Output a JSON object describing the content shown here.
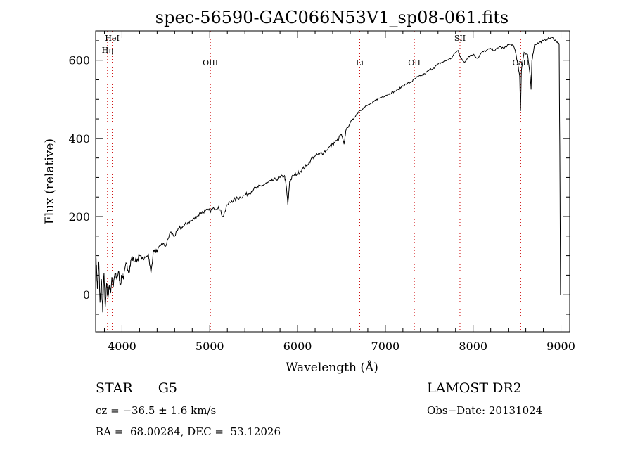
{
  "chart_data": {
    "type": "line",
    "title": "spec-56590-GAC066N53V1_sp08-061.fits",
    "xlabel": "Wavelength (Å)",
    "ylabel": "Flux (relative)",
    "xlim": [
      3700,
      9100
    ],
    "ylim": [
      -95,
      675
    ],
    "x_ticks": [
      4000,
      5000,
      6000,
      7000,
      8000,
      9000
    ],
    "y_ticks": [
      0,
      200,
      400,
      600
    ],
    "x_tick_labels": [
      "4000",
      "5000",
      "6000",
      "7000",
      "8000",
      "9000"
    ],
    "y_tick_labels": [
      "0",
      "200",
      "400",
      "600"
    ],
    "grid": false,
    "series": [
      {
        "color": "#000000",
        "points": [
          [
            3705,
            95
          ],
          [
            3720,
            15
          ],
          [
            3735,
            85
          ],
          [
            3750,
            -20
          ],
          [
            3765,
            40
          ],
          [
            3780,
            -45
          ],
          [
            3795,
            55
          ],
          [
            3810,
            -30
          ],
          [
            3825,
            30
          ],
          [
            3840,
            -10
          ],
          [
            3855,
            25
          ],
          [
            3870,
            5
          ],
          [
            3885,
            45
          ],
          [
            3900,
            20
          ],
          [
            3920,
            55
          ],
          [
            3940,
            40
          ],
          [
            3960,
            60
          ],
          [
            3980,
            25
          ],
          [
            4000,
            50
          ],
          [
            4020,
            45
          ],
          [
            4050,
            80
          ],
          [
            4080,
            60
          ],
          [
            4110,
            95
          ],
          [
            4150,
            85
          ],
          [
            4200,
            100
          ],
          [
            4250,
            90
          ],
          [
            4300,
            105
          ],
          [
            4330,
            55
          ],
          [
            4360,
            115
          ],
          [
            4400,
            110
          ],
          [
            4450,
            130
          ],
          [
            4500,
            125
          ],
          [
            4550,
            160
          ],
          [
            4600,
            150
          ],
          [
            4650,
            170
          ],
          [
            4700,
            175
          ],
          [
            4750,
            185
          ],
          [
            4800,
            190
          ],
          [
            4850,
            200
          ],
          [
            4900,
            210
          ],
          [
            4950,
            215
          ],
          [
            5000,
            215
          ],
          [
            5050,
            220
          ],
          [
            5100,
            225
          ],
          [
            5150,
            200
          ],
          [
            5200,
            230
          ],
          [
            5250,
            240
          ],
          [
            5300,
            245
          ],
          [
            5350,
            250
          ],
          [
            5400,
            255
          ],
          [
            5450,
            260
          ],
          [
            5500,
            270
          ],
          [
            5550,
            275
          ],
          [
            5600,
            280
          ],
          [
            5650,
            285
          ],
          [
            5700,
            290
          ],
          [
            5750,
            295
          ],
          [
            5800,
            300
          ],
          [
            5850,
            305
          ],
          [
            5870,
            280
          ],
          [
            5890,
            230
          ],
          [
            5910,
            290
          ],
          [
            5950,
            305
          ],
          [
            6000,
            310
          ],
          [
            6050,
            320
          ],
          [
            6100,
            330
          ],
          [
            6150,
            345
          ],
          [
            6200,
            355
          ],
          [
            6250,
            360
          ],
          [
            6300,
            365
          ],
          [
            6350,
            375
          ],
          [
            6400,
            385
          ],
          [
            6450,
            395
          ],
          [
            6500,
            410
          ],
          [
            6530,
            385
          ],
          [
            6550,
            420
          ],
          [
            6600,
            440
          ],
          [
            6650,
            455
          ],
          [
            6700,
            470
          ],
          [
            6750,
            478
          ],
          [
            6800,
            485
          ],
          [
            6850,
            490
          ],
          [
            6900,
            500
          ],
          [
            6950,
            505
          ],
          [
            7000,
            510
          ],
          [
            7050,
            515
          ],
          [
            7100,
            520
          ],
          [
            7150,
            525
          ],
          [
            7200,
            535
          ],
          [
            7250,
            540
          ],
          [
            7300,
            545
          ],
          [
            7350,
            555
          ],
          [
            7400,
            560
          ],
          [
            7450,
            565
          ],
          [
            7500,
            575
          ],
          [
            7550,
            580
          ],
          [
            7600,
            590
          ],
          [
            7650,
            595
          ],
          [
            7700,
            600
          ],
          [
            7750,
            605
          ],
          [
            7800,
            620
          ],
          [
            7830,
            625
          ],
          [
            7860,
            605
          ],
          [
            7900,
            595
          ],
          [
            7950,
            610
          ],
          [
            8000,
            615
          ],
          [
            8050,
            605
          ],
          [
            8100,
            620
          ],
          [
            8150,
            625
          ],
          [
            8200,
            630
          ],
          [
            8250,
            625
          ],
          [
            8300,
            635
          ],
          [
            8350,
            630
          ],
          [
            8400,
            640
          ],
          [
            8450,
            640
          ],
          [
            8480,
            625
          ],
          [
            8500,
            600
          ],
          [
            8530,
            560
          ],
          [
            8540,
            470
          ],
          [
            8550,
            575
          ],
          [
            8580,
            620
          ],
          [
            8620,
            615
          ],
          [
            8650,
            560
          ],
          [
            8660,
            525
          ],
          [
            8670,
            600
          ],
          [
            8700,
            640
          ],
          [
            8750,
            645
          ],
          [
            8800,
            650
          ],
          [
            8850,
            655
          ],
          [
            8900,
            658
          ],
          [
            8940,
            650
          ],
          [
            8960,
            645
          ],
          [
            8980,
            640
          ],
          [
            8990,
            250
          ],
          [
            8995,
            0
          ]
        ]
      }
    ],
    "lines": [
      {
        "name": "HeI",
        "x": 3889,
        "color": "#cc0000"
      },
      {
        "name": "Hη",
        "x": 3835,
        "color": "#cc0000"
      },
      {
        "name": "OIII",
        "x": 5007,
        "color": "#cc0000"
      },
      {
        "name": "Li",
        "x": 6708,
        "color": "#cc0000"
      },
      {
        "name": "OII",
        "x": 7330,
        "color": "#cc0000"
      },
      {
        "name": "SII",
        "x": 7850,
        "color": "#cc0000"
      },
      {
        "name": "CaII",
        "x": 8542,
        "color": "#cc0000"
      }
    ]
  },
  "info": {
    "class_label": "STAR",
    "subclass_label": "G5",
    "survey": "LAMOST DR2",
    "cz": "cz = −36.5 ± 1.6 km/s",
    "obs_date": "Obs−Date: 20131024",
    "radec": "RA =  68.00284, DEC =  53.12026"
  }
}
